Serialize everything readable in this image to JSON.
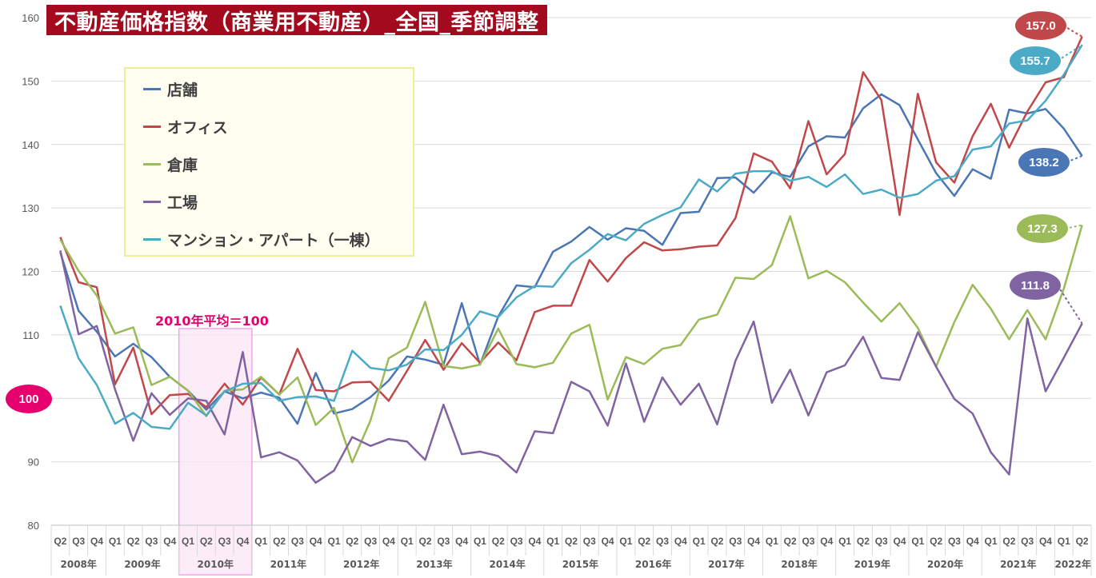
{
  "title": "不動産価格指数（商業用不動産）_全国_季節調整",
  "avg_label": "2010年平均＝100",
  "base_badge": "100",
  "chart_data": {
    "type": "line",
    "ylim": [
      80,
      160
    ],
    "yticks": [
      80,
      90,
      100,
      110,
      120,
      130,
      140,
      150,
      160
    ],
    "quarters": [
      "Q2",
      "Q3",
      "Q4",
      "Q1",
      "Q2",
      "Q3",
      "Q4",
      "Q1",
      "Q2",
      "Q3",
      "Q4",
      "Q1",
      "Q2",
      "Q3",
      "Q4",
      "Q1",
      "Q2",
      "Q3",
      "Q4",
      "Q1",
      "Q2",
      "Q3",
      "Q4",
      "Q1",
      "Q2",
      "Q3",
      "Q4",
      "Q1",
      "Q2",
      "Q3",
      "Q4",
      "Q1",
      "Q2",
      "Q3",
      "Q4",
      "Q1",
      "Q2",
      "Q3",
      "Q4",
      "Q1",
      "Q2",
      "Q3",
      "Q4",
      "Q1",
      "Q2",
      "Q3",
      "Q4",
      "Q1",
      "Q2",
      "Q3",
      "Q4",
      "Q1",
      "Q2",
      "Q3",
      "Q4",
      "Q1",
      "Q2"
    ],
    "years": [
      {
        "label": "2008年",
        "count": 3
      },
      {
        "label": "2009年",
        "count": 4
      },
      {
        "label": "2010年",
        "count": 4
      },
      {
        "label": "2011年",
        "count": 4
      },
      {
        "label": "2012年",
        "count": 4
      },
      {
        "label": "2013年",
        "count": 4
      },
      {
        "label": "2014年",
        "count": 4
      },
      {
        "label": "2015年",
        "count": 4
      },
      {
        "label": "2016年",
        "count": 4
      },
      {
        "label": "2017年",
        "count": 4
      },
      {
        "label": "2018年",
        "count": 4
      },
      {
        "label": "2019年",
        "count": 4
      },
      {
        "label": "2020年",
        "count": 4
      },
      {
        "label": "2021年",
        "count": 4
      },
      {
        "label": "2022年",
        "count": 2
      }
    ],
    "highlight_year": "2010年",
    "series": [
      {
        "name": "店舗",
        "color": "#4a76b5",
        "end_label": "138.2",
        "values": [
          123,
          113.8,
          110.5,
          106.6,
          108.6,
          106.5,
          103.4,
          101.2,
          98.2,
          101.1,
          100.0,
          100.9,
          100.1,
          96.0,
          104.0,
          97.6,
          98.3,
          100.2,
          102.8,
          106.6,
          106.1,
          105.3,
          115.0,
          105.3,
          112.9,
          117.8,
          117.5,
          123.1,
          124.7,
          127.0,
          125.0,
          126.8,
          126.4,
          124.2,
          129.2,
          129.4,
          134.7,
          134.8,
          132.4,
          135.6,
          134.9,
          139.7,
          141.3,
          141.1,
          145.7,
          147.9,
          146.2,
          140.8,
          135.5,
          131.9,
          136.1,
          134.6,
          145.5,
          144.9,
          145.6,
          142.5,
          138.2
        ]
      },
      {
        "name": "オフィス",
        "color": "#c0484a",
        "end_label": "157.0",
        "values": [
          125.4,
          118.3,
          117.5,
          102.2,
          108.0,
          97.5,
          100.5,
          100.7,
          98.6,
          102.3,
          99.0,
          103.3,
          100.6,
          107.8,
          101.3,
          101.1,
          102.5,
          102.6,
          99.6,
          104.3,
          109.2,
          104.5,
          108.7,
          105.6,
          108.8,
          106.0,
          113.6,
          114.6,
          114.6,
          121.8,
          118.4,
          122.1,
          124.6,
          123.3,
          123.5,
          123.9,
          124.1,
          128.4,
          138.6,
          137.3,
          133.1,
          143.7,
          135.3,
          138.5,
          151.4,
          147.0,
          128.9,
          148.0,
          137.2,
          134.0,
          141.3,
          146.4,
          139.5,
          145.2,
          149.8,
          150.6,
          157.0
        ]
      },
      {
        "name": "倉庫",
        "color": "#9bbb59",
        "end_label": "127.3",
        "values": [
          125.0,
          120.1,
          116.2,
          110.2,
          111.2,
          102.1,
          103.4,
          101.2,
          97.2,
          101.2,
          101.4,
          103.4,
          100.6,
          103.3,
          95.8,
          98.5,
          89.9,
          96.5,
          106.3,
          108.0,
          115.2,
          105.1,
          104.7,
          105.3,
          111.0,
          105.4,
          104.9,
          105.6,
          110.2,
          111.6,
          99.8,
          106.5,
          105.4,
          107.8,
          108.4,
          112.4,
          113.2,
          119.0,
          118.8,
          121.0,
          128.7,
          118.9,
          120.1,
          118.3,
          115.1,
          112.1,
          115.0,
          111.1,
          105.0,
          112.0,
          117.9,
          114.1,
          109.3,
          113.9,
          109.3,
          117.3,
          127.3
        ]
      },
      {
        "name": "工場",
        "color": "#8064a2",
        "end_label": "111.8",
        "values": [
          123.3,
          110.1,
          111.4,
          101.4,
          93.3,
          100.8,
          97.4,
          100.0,
          99.6,
          94.3,
          107.3,
          90.7,
          91.5,
          90.2,
          86.7,
          88.6,
          93.9,
          92.5,
          93.6,
          93.2,
          90.3,
          99.0,
          91.2,
          91.6,
          90.9,
          88.3,
          94.8,
          94.5,
          102.6,
          101.1,
          95.7,
          105.5,
          96.3,
          103.3,
          99.0,
          102.3,
          95.9,
          105.9,
          112.1,
          99.3,
          104.5,
          97.3,
          104.1,
          105.2,
          109.7,
          103.2,
          102.9,
          110.4,
          105.0,
          99.9,
          97.6,
          91.5,
          88.0,
          112.6,
          101.1,
          106.4,
          111.8
        ]
      },
      {
        "name": "マンション・アパート（一棟）",
        "color": "#4babc6",
        "end_label": "155.7",
        "values": [
          114.6,
          106.3,
          102.1,
          96.0,
          97.7,
          95.5,
          95.2,
          99.3,
          97.3,
          101.1,
          102.3,
          102.4,
          99.6,
          100.2,
          100.3,
          99.6,
          107.5,
          104.8,
          104.4,
          105.3,
          107.7,
          107.6,
          110.0,
          113.7,
          112.8,
          115.9,
          117.7,
          117.6,
          121.3,
          123.4,
          125.9,
          124.9,
          127.5,
          128.9,
          130.1,
          134.5,
          132.6,
          135.4,
          135.8,
          135.8,
          134.3,
          134.9,
          133.3,
          135.3,
          132.2,
          132.9,
          131.6,
          132.2,
          134.3,
          135.0,
          139.2,
          139.7,
          143.3,
          143.8,
          146.9,
          151.0,
          155.7
        ]
      }
    ]
  }
}
